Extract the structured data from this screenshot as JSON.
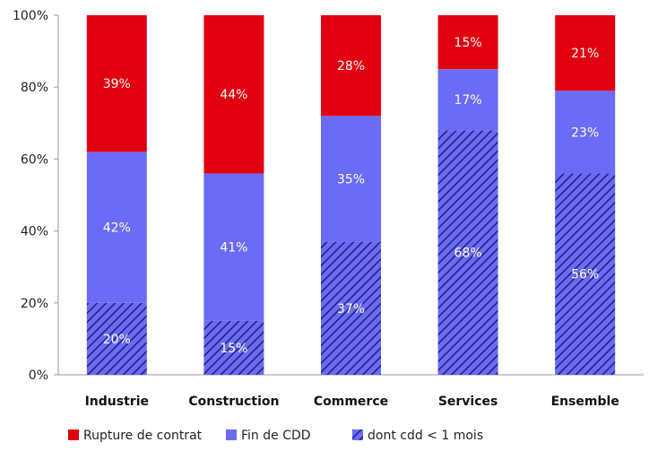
{
  "chart_data": {
    "type": "bar",
    "stacked": true,
    "categories": [
      "Industrie",
      "Construction",
      "Commerce",
      "Services",
      "Ensemble"
    ],
    "series": [
      {
        "name": "dont cdd < 1 mois",
        "values": [
          20,
          15,
          37,
          68,
          56
        ],
        "labels": [
          "20%",
          "15%",
          "37%",
          "68%",
          "56%"
        ],
        "color": "#6b6bf7",
        "pattern": "hatched"
      },
      {
        "name": "Fin de CDD",
        "values": [
          42,
          41,
          35,
          17,
          23
        ],
        "labels": [
          "42%",
          "41%",
          "35%",
          "17%",
          "23%"
        ],
        "color": "#6b6bf7"
      },
      {
        "name": "Rupture de contrat",
        "values": [
          39,
          44,
          28,
          15,
          21
        ],
        "labels": [
          "39%",
          "44%",
          "28%",
          "15%",
          "21%"
        ],
        "color": "#e1000f"
      }
    ],
    "y_ticks": [
      "0%",
      "20%",
      "40%",
      "60%",
      "80%",
      "100%"
    ],
    "ylim": [
      0,
      100
    ],
    "grid": false,
    "legend_position": "bottom",
    "legend": [
      {
        "label": "Rupture de contrat",
        "color": "#e1000f"
      },
      {
        "label": "Fin de CDD",
        "color": "#6b6bf7"
      },
      {
        "label": "dont cdd < 1 mois",
        "color": "#6b6bf7",
        "pattern": "hatched"
      }
    ]
  }
}
